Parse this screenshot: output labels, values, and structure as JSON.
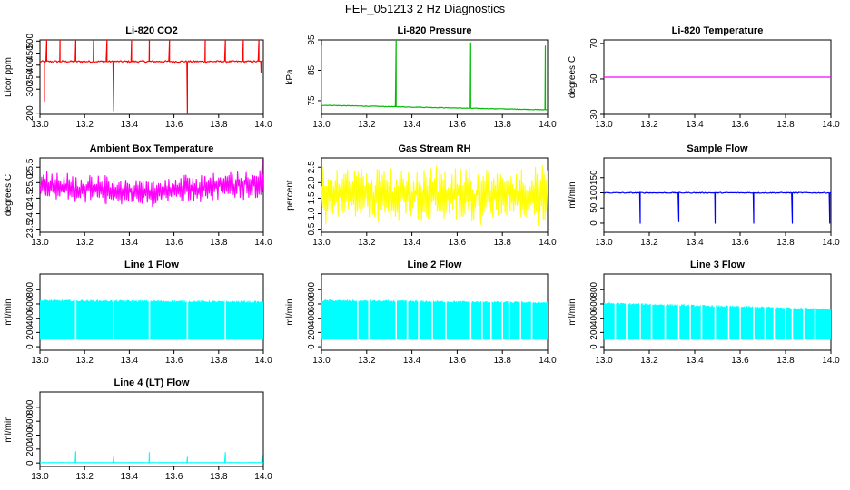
{
  "figure_title": "FEF_051213  2 Hz Diagnostics",
  "chart_data": [
    {
      "type": "line",
      "title": "Li-820 CO2",
      "xlabel": "",
      "ylabel": "Licor ppm",
      "xlim": [
        13.0,
        14.0
      ],
      "ylim": [
        195,
        505
      ],
      "xticks": [
        "13.0",
        "13.2",
        "13.4",
        "13.6",
        "13.8",
        "14.0"
      ],
      "yticks": [
        {
          "v": 200,
          "label": "200"
        },
        {
          "v": 300,
          "label": "300"
        },
        {
          "v": 350,
          "label": "350"
        },
        {
          "v": 400,
          "label": "400"
        },
        {
          "v": 450,
          "label": "450"
        },
        {
          "v": 500,
          "label": "500"
        }
      ],
      "color": "#ff0000",
      "base": 415,
      "noise": 7,
      "band": 0,
      "spikes": [
        {
          "x": 13.03,
          "y": 505
        },
        {
          "x": 13.02,
          "y": 250
        },
        {
          "x": 13.09,
          "y": 505
        },
        {
          "x": 13.16,
          "y": 505
        },
        {
          "x": 13.24,
          "y": 505
        },
        {
          "x": 13.3,
          "y": 505
        },
        {
          "x": 13.33,
          "y": 210
        },
        {
          "x": 13.41,
          "y": 505
        },
        {
          "x": 13.49,
          "y": 505
        },
        {
          "x": 13.58,
          "y": 505
        },
        {
          "x": 13.66,
          "y": 195
        },
        {
          "x": 13.74,
          "y": 505
        },
        {
          "x": 13.83,
          "y": 505
        },
        {
          "x": 13.91,
          "y": 505
        },
        {
          "x": 13.98,
          "y": 505
        },
        {
          "x": 13.99,
          "y": 370
        }
      ]
    },
    {
      "type": "line",
      "title": "Li-820 Pressure",
      "xlabel": "",
      "ylabel": "kPa",
      "xlim": [
        13.0,
        14.0
      ],
      "ylim": [
        70.5,
        95
      ],
      "xticks": [
        "13.0",
        "13.2",
        "13.4",
        "13.6",
        "13.8",
        "14.0"
      ],
      "yticks": [
        {
          "v": 75,
          "label": "75"
        },
        {
          "v": 85,
          "label": "85"
        },
        {
          "v": 95,
          "label": "95"
        }
      ],
      "color": "#00bb00",
      "base": 73.5,
      "noise": 0.2,
      "band": 0,
      "trend": -1.5,
      "spikes": [
        {
          "x": 13.0,
          "y": 93
        },
        {
          "x": 13.33,
          "y": 95
        },
        {
          "x": 13.66,
          "y": 94
        },
        {
          "x": 13.99,
          "y": 93
        }
      ]
    },
    {
      "type": "line",
      "title": "Li-820 Temperature",
      "xlabel": "",
      "ylabel": "degrees C",
      "xlim": [
        13.0,
        14.0
      ],
      "ylim": [
        30,
        72
      ],
      "xticks": [
        "13.0",
        "13.2",
        "13.4",
        "13.6",
        "13.8",
        "14.0"
      ],
      "yticks": [
        {
          "v": 30,
          "label": "30"
        },
        {
          "v": 50,
          "label": "50"
        },
        {
          "v": 70,
          "label": "70"
        }
      ],
      "color": "#ff00ff",
      "base": 51,
      "noise": 0,
      "band": 0,
      "spikes": []
    },
    {
      "type": "line",
      "title": "Ambient Box Temperature",
      "xlabel": "",
      "ylabel": "degrees C",
      "xlim": [
        13.0,
        14.0
      ],
      "ylim": [
        23.4,
        25.8
      ],
      "xticks": [
        "13.0",
        "13.2",
        "13.4",
        "13.6",
        "13.8",
        "14.0"
      ],
      "yticks": [
        {
          "v": 23.5,
          "label": "23.5"
        },
        {
          "v": 24.0,
          "label": "24.0"
        },
        {
          "v": 24.5,
          "label": "24.5"
        },
        {
          "v": 25.0,
          "label": "25.0"
        },
        {
          "v": 25.5,
          "label": "25.5"
        }
      ],
      "color": "#ff00ff",
      "base": 24.95,
      "noise": 0.55,
      "band": 0.35,
      "dip": 0.25,
      "spikes": [
        {
          "x": 13.995,
          "y": 25.75
        }
      ]
    },
    {
      "type": "line",
      "title": "Gas Stream RH",
      "xlabel": "",
      "ylabel": "percent",
      "xlim": [
        13.0,
        14.0
      ],
      "ylim": [
        0.4,
        2.8
      ],
      "xticks": [
        "13.0",
        "13.2",
        "13.4",
        "13.6",
        "13.8",
        "14.0"
      ],
      "yticks": [
        {
          "v": 0.5,
          "label": "0.5"
        },
        {
          "v": 1.0,
          "label": "1.0"
        },
        {
          "v": 1.5,
          "label": "1.5"
        },
        {
          "v": 2.0,
          "label": "2.0"
        },
        {
          "v": 2.5,
          "label": "2.5"
        }
      ],
      "color": "#ffff00",
      "base": 1.6,
      "noise": 1.1,
      "band": 0.7,
      "spikes": []
    },
    {
      "type": "line",
      "title": "Sample Flow",
      "xlabel": "",
      "ylabel": "ml/min",
      "xlim": [
        13.0,
        14.0
      ],
      "ylim": [
        -30,
        215
      ],
      "xticks": [
        "13.0",
        "13.2",
        "13.4",
        "13.6",
        "13.8",
        "14.0"
      ],
      "yticks": [
        {
          "v": 0,
          "label": "0"
        },
        {
          "v": 50,
          "label": "50"
        },
        {
          "v": 100,
          "label": "100"
        },
        {
          "v": 150,
          "label": "150"
        }
      ],
      "color": "#0000ff",
      "base": 100,
      "noise": 3,
      "band": 0,
      "spikes": [
        {
          "x": 13.16,
          "y": 0
        },
        {
          "x": 13.33,
          "y": 5
        },
        {
          "x": 13.49,
          "y": 0
        },
        {
          "x": 13.66,
          "y": 0
        },
        {
          "x": 13.83,
          "y": 0
        },
        {
          "x": 13.995,
          "y": 0
        }
      ]
    },
    {
      "type": "line",
      "title": "Line 1 Flow",
      "xlabel": "",
      "ylabel": "ml/min",
      "xlim": [
        13.0,
        14.0
      ],
      "ylim": [
        -50,
        1020
      ],
      "xticks": [
        "13.0",
        "13.2",
        "13.4",
        "13.6",
        "13.8",
        "14.0"
      ],
      "yticks": [
        {
          "v": 0,
          "label": "0"
        },
        {
          "v": 200,
          "label": "200"
        },
        {
          "v": 400,
          "label": "400"
        },
        {
          "v": 600,
          "label": "600"
        },
        {
          "v": 800,
          "label": "800"
        }
      ],
      "color": "#00ffff",
      "fill_low": 100,
      "fill_high": 650,
      "trend_high": -20,
      "gaps": [
        13.16,
        13.33,
        13.49,
        13.66,
        13.83
      ],
      "spikes": []
    },
    {
      "type": "line",
      "title": "Line 2 Flow",
      "xlabel": "",
      "ylabel": "ml/min",
      "xlim": [
        13.0,
        14.0
      ],
      "ylim": [
        -50,
        1020
      ],
      "xticks": [
        "13.0",
        "13.2",
        "13.4",
        "13.6",
        "13.8",
        "14.0"
      ],
      "yticks": [
        {
          "v": 0,
          "label": "0"
        },
        {
          "v": 200,
          "label": "200"
        },
        {
          "v": 400,
          "label": "400"
        },
        {
          "v": 600,
          "label": "600"
        },
        {
          "v": 800,
          "label": "800"
        }
      ],
      "color": "#00ffff",
      "fill_low": 100,
      "fill_high": 650,
      "trend_high": -30,
      "gaps": [
        13.16,
        13.21,
        13.33,
        13.38,
        13.43,
        13.49,
        13.55,
        13.66,
        13.71,
        13.75,
        13.8,
        13.83,
        13.88,
        13.93
      ],
      "spikes": []
    },
    {
      "type": "line",
      "title": "Line 3 Flow",
      "xlabel": "",
      "ylabel": "ml/min",
      "xlim": [
        13.0,
        14.0
      ],
      "ylim": [
        -50,
        1020
      ],
      "xticks": [
        "13.0",
        "13.2",
        "13.4",
        "13.6",
        "13.8",
        "14.0"
      ],
      "yticks": [
        {
          "v": 0,
          "label": "0"
        },
        {
          "v": 200,
          "label": "200"
        },
        {
          "v": 400,
          "label": "400"
        },
        {
          "v": 600,
          "label": "600"
        },
        {
          "v": 800,
          "label": "800"
        }
      ],
      "color": "#00ffff",
      "fill_low": 100,
      "fill_high": 610,
      "trend_high": -80,
      "gaps": [
        13.05,
        13.1,
        13.16,
        13.21,
        13.27,
        13.33,
        13.38,
        13.43,
        13.49,
        13.55,
        13.6,
        13.66,
        13.71,
        13.75,
        13.8,
        13.83,
        13.88,
        13.93
      ],
      "spikes": []
    },
    {
      "type": "line",
      "title": "Line 4 (LT) Flow",
      "xlabel": "",
      "ylabel": "ml/min",
      "xlim": [
        13.0,
        14.0
      ],
      "ylim": [
        -50,
        1020
      ],
      "xticks": [
        "13.0",
        "13.2",
        "13.4",
        "13.6",
        "13.8",
        "14.0"
      ],
      "yticks": [
        {
          "v": 0,
          "label": "0"
        },
        {
          "v": 200,
          "label": "200"
        },
        {
          "v": 400,
          "label": "400"
        },
        {
          "v": 600,
          "label": "600"
        },
        {
          "v": 800,
          "label": "800"
        }
      ],
      "color": "#00ffff",
      "base": 5,
      "noise": 3,
      "band": 0,
      "spikes": [
        {
          "x": 13.16,
          "y": 160
        },
        {
          "x": 13.33,
          "y": 90
        },
        {
          "x": 13.49,
          "y": 150
        },
        {
          "x": 13.66,
          "y": 80
        },
        {
          "x": 13.83,
          "y": 150
        },
        {
          "x": 13.995,
          "y": 110
        }
      ]
    }
  ]
}
